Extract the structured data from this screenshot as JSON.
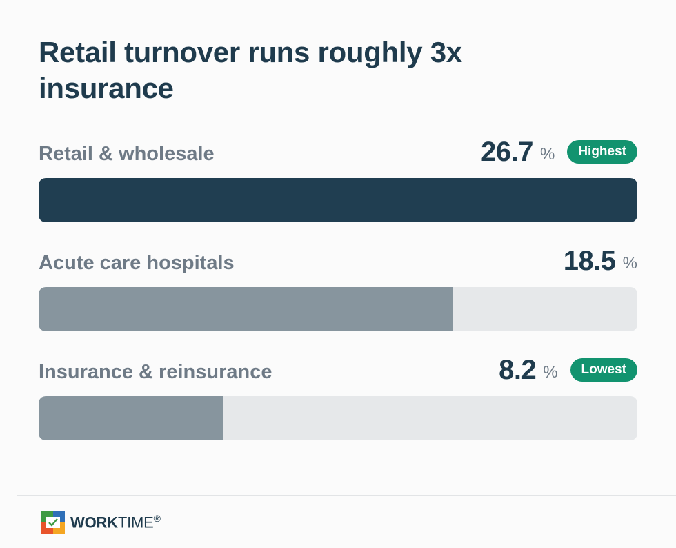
{
  "chart_data": {
    "type": "bar",
    "orientation": "horizontal",
    "title": "Retail turnover runs roughly 3x insurance",
    "unit": "%",
    "xlim": [
      0,
      26.7
    ],
    "categories": [
      "Retail & wholesale",
      "Acute care hospitals",
      "Insurance & reinsurance"
    ],
    "values": [
      26.7,
      18.5,
      8.2
    ],
    "value_labels": [
      "26.7",
      "18.5",
      "8.2"
    ],
    "badges": [
      "Highest",
      "",
      "Lowest"
    ],
    "colors": {
      "highest_fill": "#203e51",
      "other_fill": "#87959e",
      "track": "#e6e8ea",
      "badge": "#12936f"
    }
  },
  "footer": {
    "brand_bold": "WORK",
    "brand_light": "TIME",
    "brand_mark": "®",
    "logo_icon": "worktime-logo-icon"
  }
}
